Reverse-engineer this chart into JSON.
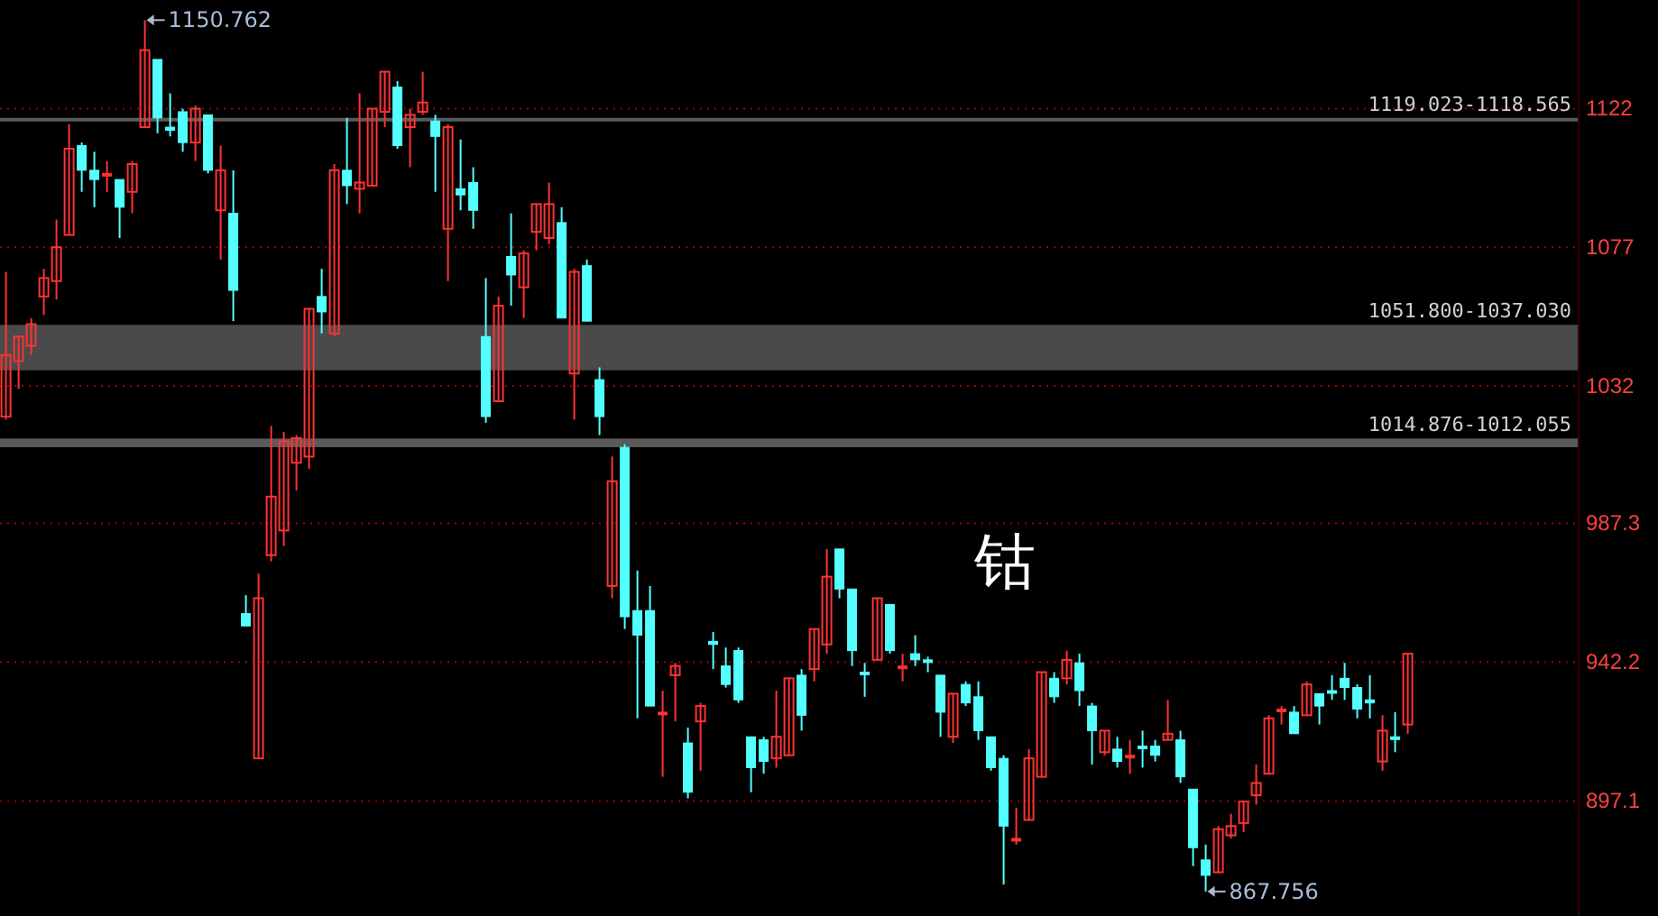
{
  "chart_data": {
    "type": "candlestick",
    "title": "钴",
    "categories": [
      null,
      null,
      null,
      null,
      null,
      null,
      null,
      null,
      null,
      null,
      null,
      null,
      null,
      null,
      null,
      null,
      null,
      null,
      null,
      null,
      null,
      null,
      null,
      null,
      null,
      null,
      null,
      null,
      null,
      null,
      null,
      null,
      null,
      null,
      null,
      null,
      null,
      null,
      null,
      null,
      null,
      null,
      null,
      null,
      null,
      null,
      null,
      null,
      null,
      null,
      null,
      null,
      null,
      null,
      null,
      null,
      null,
      null,
      null,
      null,
      null,
      null,
      null,
      null,
      null,
      null,
      null,
      null,
      null,
      null,
      null,
      null,
      null,
      null,
      null,
      null,
      null,
      null,
      null,
      null,
      null,
      null,
      null,
      null,
      null,
      null,
      null,
      null,
      null,
      null,
      null,
      null,
      null,
      null,
      null,
      null,
      null,
      null,
      null,
      null,
      null,
      null,
      null,
      null,
      null,
      null,
      null,
      null,
      null,
      null,
      null,
      null,
      null,
      null,
      null,
      null,
      null,
      null,
      null,
      null,
      null,
      null,
      null,
      null,
      null
    ],
    "ohlc": [
      [
        1022,
        1069,
        1021,
        1042
      ],
      [
        1040,
        1048,
        1031,
        1048
      ],
      [
        1045,
        1054,
        1042,
        1052
      ],
      [
        1061,
        1070,
        1055,
        1067
      ],
      [
        1066,
        1086,
        1060,
        1077
      ],
      [
        1081,
        1117,
        1081,
        1109
      ],
      [
        1110,
        1111,
        1095,
        1102
      ],
      [
        1102,
        1108,
        1090,
        1099
      ],
      [
        1101,
        1105,
        1095,
        1101
      ],
      [
        1099,
        1099,
        1080,
        1090
      ],
      [
        1095,
        1105,
        1088,
        1104
      ],
      [
        1116,
        1150.762,
        1116,
        1141
      ],
      [
        1138,
        1138,
        1114,
        1119
      ],
      [
        1116,
        1127,
        1113,
        1115
      ],
      [
        1121,
        1122,
        1108,
        1111
      ],
      [
        1111,
        1123,
        1105,
        1122
      ],
      [
        1120,
        1120,
        1101,
        1102
      ],
      [
        1089,
        1110,
        1073,
        1102
      ],
      [
        1088,
        1102,
        1053,
        1063
      ],
      [
        958,
        964,
        954,
        954
      ],
      [
        911,
        971,
        911,
        963
      ],
      [
        977,
        1019,
        975,
        996
      ],
      [
        985,
        1017,
        980,
        1014
      ],
      [
        1007,
        1016,
        998,
        1015
      ],
      [
        1009,
        1057,
        1005,
        1057
      ],
      [
        1061,
        1070,
        1049,
        1056
      ],
      [
        1049,
        1104,
        1048,
        1102
      ],
      [
        1102,
        1119,
        1091,
        1097
      ],
      [
        1096,
        1127,
        1088,
        1098
      ],
      [
        1097,
        1122,
        1097,
        1122
      ],
      [
        1121,
        1134,
        1116,
        1134
      ],
      [
        1129,
        1131,
        1109,
        1110
      ],
      [
        1116,
        1122,
        1103,
        1120
      ],
      [
        1121,
        1134,
        1120,
        1124
      ],
      [
        1118,
        1120,
        1095,
        1113
      ],
      [
        1083,
        1117,
        1066,
        1116
      ],
      [
        1096,
        1112,
        1089,
        1094
      ],
      [
        1098,
        1103,
        1083,
        1089
      ],
      [
        1048,
        1067,
        1020,
        1022
      ],
      [
        1027,
        1061,
        1027,
        1058
      ],
      [
        1074,
        1088,
        1058,
        1068
      ],
      [
        1064,
        1076,
        1054,
        1075
      ],
      [
        1082,
        1091,
        1076,
        1091
      ],
      [
        1080,
        1098,
        1078,
        1091
      ],
      [
        1085,
        1090,
        1054,
        1054
      ],
      [
        1036,
        1070,
        1021,
        1069
      ],
      [
        1071,
        1073,
        1053,
        1053
      ],
      [
        1034,
        1038,
        1016,
        1022
      ],
      [
        967,
        1009,
        963,
        1001
      ],
      [
        1012,
        1013,
        953,
        957
      ],
      [
        959,
        972,
        924,
        951
      ],
      [
        959,
        967,
        928,
        928
      ],
      [
        926,
        933,
        905,
        926
      ],
      [
        938,
        942,
        923,
        941
      ],
      [
        916,
        921,
        898,
        900
      ],
      [
        923,
        929,
        907,
        928
      ],
      [
        949,
        952,
        940,
        948
      ],
      [
        941,
        947,
        934,
        935
      ],
      [
        946,
        947,
        929,
        930
      ],
      [
        918,
        918,
        900,
        908
      ],
      [
        917,
        918,
        906,
        910
      ],
      [
        911,
        933,
        908,
        918
      ],
      [
        912,
        937,
        912,
        937
      ],
      [
        938,
        940,
        920,
        925
      ],
      [
        940,
        953,
        936,
        953
      ],
      [
        948,
        979,
        945,
        970
      ],
      [
        979,
        979,
        963,
        966
      ],
      [
        966,
        966,
        941,
        946
      ],
      [
        939,
        942,
        931,
        939
      ],
      [
        943,
        963,
        943,
        963
      ],
      [
        961,
        961,
        945,
        946
      ],
      [
        941,
        945,
        936,
        941
      ],
      [
        945,
        951,
        941,
        943
      ],
      [
        943,
        944,
        939,
        943
      ],
      [
        938,
        938,
        918,
        926
      ],
      [
        918,
        932,
        916,
        932
      ],
      [
        935,
        936,
        928,
        929
      ],
      [
        931,
        936,
        917,
        920
      ],
      [
        918,
        918,
        907,
        908
      ],
      [
        911,
        912,
        870,
        889
      ],
      [
        885,
        895,
        883,
        885
      ],
      [
        891,
        914,
        891,
        911
      ],
      [
        905,
        939,
        905,
        939
      ],
      [
        937,
        939,
        929,
        931
      ],
      [
        937,
        946,
        935,
        943
      ],
      [
        942,
        945,
        928,
        933
      ],
      [
        928,
        929,
        909,
        920
      ],
      [
        913,
        920,
        912,
        920
      ],
      [
        914,
        918,
        908,
        910
      ],
      [
        912,
        917,
        906,
        912
      ],
      [
        915,
        920,
        908,
        915
      ],
      [
        915,
        917,
        910,
        912
      ],
      [
        917,
        930,
        917,
        919
      ],
      [
        917,
        920,
        903,
        905
      ],
      [
        901,
        901,
        876,
        882
      ],
      [
        878,
        883,
        867.756,
        873
      ],
      [
        874,
        889,
        874,
        888
      ],
      [
        886,
        893,
        885,
        889
      ],
      [
        890,
        897,
        887,
        897
      ],
      [
        899,
        909,
        896,
        903
      ],
      [
        906,
        925,
        906,
        924
      ],
      [
        927,
        928,
        922,
        927
      ],
      [
        926,
        928,
        919,
        919
      ],
      [
        925,
        936,
        925,
        935
      ],
      [
        932,
        932,
        922,
        928
      ],
      [
        933,
        938,
        930,
        933
      ],
      [
        937,
        942,
        930,
        934
      ],
      [
        934,
        935,
        924,
        927
      ],
      [
        930,
        938,
        924,
        929
      ],
      [
        910,
        925,
        907,
        920
      ],
      [
        918,
        926,
        913,
        918
      ],
      [
        922,
        945,
        919,
        945
      ],
      null,
      null,
      null,
      null,
      null,
      null,
      null,
      null,
      null,
      null,
      null,
      null,
      null
    ],
    "colors": [
      "#ff3232",
      "#ff3232",
      "#ff3232",
      "#ff3232",
      "#ff3232",
      "#ff3232",
      "#54ffff",
      "#54ffff",
      "#ff3232",
      "#54ffff",
      "#ff3232",
      "#ff3232",
      "#54ffff",
      "#54ffff",
      "#54ffff",
      "#ff3232",
      "#54ffff",
      "#ff3232",
      "#54ffff",
      "#54ffff",
      "#ff3232",
      "#ff3232",
      "#ff3232",
      "#ff3232",
      "#ff3232",
      "#54ffff",
      "#ff3232",
      "#54ffff",
      "#ff3232",
      "#ff3232",
      "#ff3232",
      "#54ffff",
      "#ff3232",
      "#ff3232",
      "#54ffff",
      "#ff3232",
      "#54ffff",
      "#54ffff",
      "#54ffff",
      "#ff3232",
      "#54ffff",
      "#ff3232",
      "#ff3232",
      "#ff3232",
      "#54ffff",
      "#ff3232",
      "#54ffff",
      "#54ffff",
      "#ff3232",
      "#54ffff",
      "#54ffff",
      "#54ffff",
      "#ff3232",
      "#ff3232",
      "#54ffff",
      "#ff3232",
      "#54ffff",
      "#54ffff",
      "#54ffff",
      "#54ffff",
      "#54ffff",
      "#ff3232",
      "#ff3232",
      "#54ffff",
      "#ff3232",
      "#ff3232",
      "#54ffff",
      "#54ffff",
      "#54ffff",
      "#ff3232",
      "#54ffff",
      "#ff3232",
      "#54ffff",
      "#54ffff",
      "#54ffff",
      "#ff3232",
      "#54ffff",
      "#54ffff",
      "#54ffff",
      "#54ffff",
      "#ff3232",
      "#ff3232",
      "#ff3232",
      "#54ffff",
      "#ff3232",
      "#54ffff",
      "#54ffff",
      "#ff3232",
      "#54ffff",
      "#ff3232",
      "#54ffff",
      "#54ffff",
      "#ff3232",
      "#54ffff",
      "#54ffff",
      "#54ffff",
      "#ff3232",
      "#ff3232",
      "#ff3232",
      "#ff3232",
      "#ff3232",
      "#ff3232",
      "#54ffff",
      "#ff3232",
      "#54ffff",
      "#54ffff",
      "#54ffff",
      "#54ffff",
      "#54ffff",
      "#ff3232",
      "#54ffff",
      "#ff3232",
      null,
      null,
      null,
      null,
      null,
      null,
      null,
      null,
      null,
      null,
      null,
      null,
      null
    ],
    "ylim": [
      859.8,
      1157.3
    ],
    "yticks": [
      1122,
      1077,
      1032,
      987.3,
      942.2,
      897.1
    ],
    "grid": "y",
    "bands": [
      {
        "axis": "y",
        "from": 1118.565,
        "to": 1119.023,
        "label": "1119.023-1118.565",
        "color": "#5a5a5a"
      },
      {
        "axis": "y",
        "from": 1037.03,
        "to": 1051.8,
        "label": "1051.800-1037.030",
        "color": "#4a4a4a"
      },
      {
        "axis": "y",
        "from": 1012.055,
        "to": 1014.876,
        "label": "1014.876-1012.055",
        "color": "#5a5a5a"
      }
    ],
    "annotations": [
      "1150.762",
      "867.756"
    ]
  }
}
